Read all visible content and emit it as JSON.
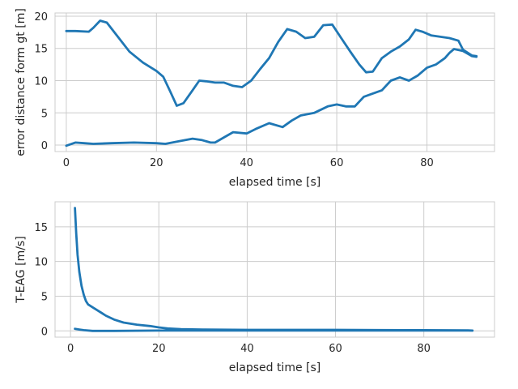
{
  "chart_data": [
    {
      "type": "line",
      "xlabel": "elapsed time [s]",
      "ylabel": "error distance form gt [m]",
      "xlim": [
        -2.5,
        95
      ],
      "ylim": [
        -1,
        20.5
      ],
      "xticks": [
        0,
        20,
        40,
        60,
        80
      ],
      "yticks": [
        0,
        5,
        10,
        15,
        20
      ],
      "grid": true,
      "color": "#1f77b4",
      "series": [
        {
          "x": [
            0,
            2,
            5,
            6,
            7.5,
            9,
            11,
            14,
            17,
            20,
            21.5,
            23,
            24.5,
            26,
            28,
            29.5,
            31,
            33,
            35,
            37,
            39,
            41,
            43,
            45,
            47,
            49,
            51,
            53,
            55,
            57,
            59,
            61,
            63,
            65,
            66.5,
            68,
            70,
            72,
            74,
            76,
            77.5,
            79,
            81,
            83,
            85,
            87,
            88,
            90,
            91
          ],
          "y": [
            17.7,
            17.7,
            17.6,
            18.2,
            19.3,
            19.0,
            17.2,
            14.5,
            12.8,
            11.5,
            10.6,
            8.4,
            6.1,
            6.5,
            8.5,
            10.0,
            9.9,
            9.7,
            9.7,
            9.2,
            9.0,
            10.0,
            11.8,
            13.5,
            16.0,
            18.0,
            17.6,
            16.6,
            16.8,
            18.6,
            18.7,
            16.6,
            14.5,
            12.5,
            11.3,
            11.4,
            13.5,
            14.5,
            15.3,
            16.4,
            17.9,
            17.6,
            17.0,
            16.8,
            16.6,
            16.2,
            14.8,
            13.9,
            13.8
          ]
        },
        {
          "x": [
            0,
            2,
            4,
            6,
            10,
            15,
            20,
            22,
            25,
            28,
            30,
            32,
            33,
            35,
            37,
            40,
            42,
            45,
            48,
            50,
            52,
            55,
            58,
            60,
            62,
            64,
            66,
            68,
            70,
            72,
            74,
            76,
            78,
            80,
            82,
            84,
            85,
            86,
            88,
            90,
            91
          ],
          "y": [
            -0.1,
            0.4,
            0.3,
            0.2,
            0.3,
            0.4,
            0.3,
            0.2,
            0.6,
            1.0,
            0.8,
            0.4,
            0.4,
            1.2,
            2.0,
            1.8,
            2.5,
            3.4,
            2.8,
            3.8,
            4.6,
            5.0,
            6.0,
            6.3,
            6.0,
            6.0,
            7.5,
            8.0,
            8.5,
            10.0,
            10.5,
            10.0,
            10.8,
            12.0,
            12.5,
            13.5,
            14.3,
            14.9,
            14.6,
            13.8,
            13.7
          ]
        }
      ]
    },
    {
      "type": "line",
      "xlabel": "elapsed time [s]",
      "ylabel": "T-EAG [m/s]",
      "xlim": [
        -3.5,
        96
      ],
      "ylim": [
        -0.9,
        18.6
      ],
      "xticks": [
        0,
        20,
        40,
        60,
        80
      ],
      "yticks": [
        0,
        5,
        10,
        15
      ],
      "grid": true,
      "color": "#1f77b4",
      "series": [
        {
          "x": [
            1,
            1.3,
            1.6,
            2,
            2.5,
            3,
            3.5,
            4,
            5,
            6,
            7,
            8,
            10,
            12,
            15,
            18,
            20,
            22,
            25,
            30,
            40,
            50,
            60,
            70,
            80,
            90,
            91
          ],
          "y": [
            17.7,
            14,
            11,
            8.5,
            6.5,
            5.2,
            4.3,
            3.8,
            3.4,
            3.0,
            2.6,
            2.2,
            1.6,
            1.2,
            0.9,
            0.7,
            0.5,
            0.35,
            0.25,
            0.2,
            0.15,
            0.15,
            0.15,
            0.12,
            0.1,
            0.08,
            0.05
          ]
        },
        {
          "x": [
            1,
            2,
            3,
            5,
            10,
            20,
            30,
            40,
            50,
            60,
            70,
            80,
            91
          ],
          "y": [
            0.3,
            0.2,
            0.1,
            0.0,
            0.0,
            0.05,
            0.05,
            0.05,
            0.05,
            0.05,
            0.05,
            0.05,
            0.05
          ]
        }
      ]
    }
  ]
}
